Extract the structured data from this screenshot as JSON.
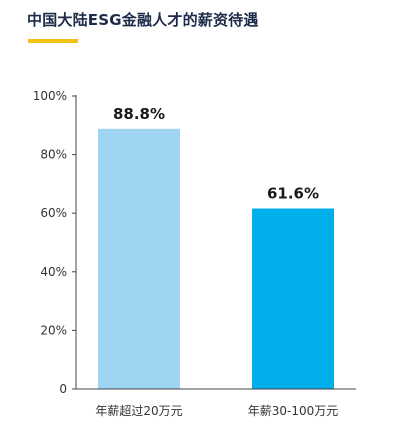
{
  "header": {
    "title": "中国大陆ESG金融人才的薪资待遇"
  },
  "chart_data": {
    "type": "bar",
    "categories": [
      "年薪超过20万元",
      "年薪30-100万元"
    ],
    "values": [
      88.8,
      61.6
    ],
    "data_labels": [
      "88.8%",
      "61.6%"
    ],
    "bar_colors": [
      "#9fd4f2",
      "#00aeea"
    ],
    "ylim": [
      0,
      100
    ],
    "yticks": [
      0,
      20,
      40,
      60,
      80,
      100
    ],
    "ytick_labels": [
      "0",
      "20%",
      "40%",
      "60%",
      "80%",
      "100%"
    ],
    "grid": false
  },
  "colors": {
    "accent_underline": "#f2c316",
    "title_text": "#1c2b4a",
    "axis": "#444444"
  }
}
